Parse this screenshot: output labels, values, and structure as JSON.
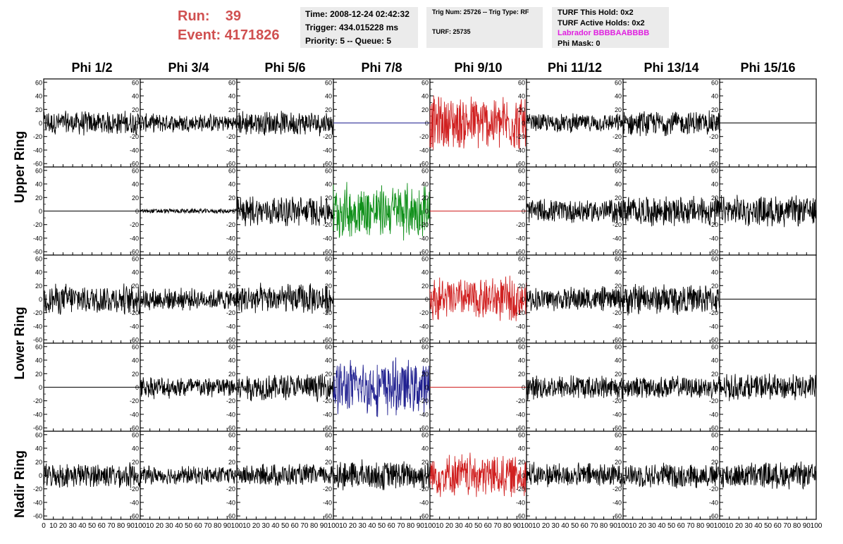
{
  "header": {
    "run_label": "Run:",
    "run_value": "39",
    "event_label": "Event:",
    "event_value": "4171826"
  },
  "info_panel_1": {
    "time": "Time: 2008-12-24 02:42:32",
    "trigger": "Trigger: 434.015228 ms",
    "priority": "Priority: 5 -- Queue: 5"
  },
  "info_panel_2": {
    "trig": "Trig Num: 25726 -- Trig Type: RF",
    "turf": "TURF: 25735"
  },
  "info_panel_3": {
    "this_hold": "TURF This Hold: 0x2",
    "active_holds": "TURF Active Holds: 0x2",
    "labrador": "Labrador BBBBAABBBB",
    "phi_mask": "Phi Mask: 0"
  },
  "columns": [
    "Phi 1/2",
    "Phi 3/4",
    "Phi 5/6",
    "Phi 7/8",
    "Phi 9/10",
    "Phi 11/12",
    "Phi 13/14",
    "Phi 15/16"
  ],
  "rows": [
    "Upper Ring",
    "Lower Ring",
    "Nadir Ring"
  ],
  "colors": {
    "black": "#000000",
    "red": "#d02020",
    "green": "#10901a",
    "blue": "#202090",
    "title_red": "#d05050",
    "magenta": "#e020e0"
  },
  "chart_data": {
    "type": "line",
    "x_range": [
      0,
      100
    ],
    "y_range": [
      -65,
      65
    ],
    "x_ticks": [
      0,
      10,
      20,
      30,
      40,
      50,
      60,
      70,
      80,
      90,
      100
    ],
    "y_ticks": [
      -60,
      -40,
      -20,
      0,
      20,
      40,
      60
    ],
    "y_tick_labels": [
      "-60",
      "-40",
      "-20",
      "0",
      "20",
      "40",
      "60"
    ],
    "x_tick_labels_first": [
      "0",
      "10",
      "20",
      "30",
      "40",
      "50",
      "60",
      "70",
      "80",
      "90",
      "100"
    ],
    "x_tick_labels_other": [
      "10",
      "20",
      "30",
      "40",
      "50",
      "60",
      "70",
      "80",
      "90",
      "100"
    ],
    "panel_rows": [
      {
        "channels": [
          {
            "color": "black",
            "amplitude": 20,
            "flat": false
          },
          {
            "color": "black",
            "amplitude": 15,
            "flat": false
          },
          {
            "color": "black",
            "amplitude": 20,
            "flat": false
          },
          {
            "color": "blue",
            "amplitude": 0,
            "flat": true
          },
          {
            "color": "red",
            "amplitude": 45,
            "flat": false
          },
          {
            "color": "black",
            "amplitude": 15,
            "flat": false
          },
          {
            "color": "black",
            "amplitude": 20,
            "flat": false
          },
          {
            "color": "black",
            "amplitude": 0,
            "flat": true
          }
        ]
      },
      {
        "channels": [
          {
            "color": "black",
            "amplitude": 0,
            "flat": true
          },
          {
            "color": "black",
            "amplitude": 4,
            "flat": false
          },
          {
            "color": "black",
            "amplitude": 25,
            "flat": false
          },
          {
            "color": "green",
            "amplitude": 45,
            "flat": false
          },
          {
            "color": "red",
            "amplitude": 0,
            "flat": true
          },
          {
            "color": "black",
            "amplitude": 20,
            "flat": false
          },
          {
            "color": "black",
            "amplitude": 25,
            "flat": false
          },
          {
            "color": "black",
            "amplitude": 25,
            "flat": false
          }
        ]
      },
      {
        "channels": [
          {
            "color": "black",
            "amplitude": 25,
            "flat": false
          },
          {
            "color": "black",
            "amplitude": 18,
            "flat": false
          },
          {
            "color": "black",
            "amplitude": 25,
            "flat": false
          },
          {
            "color": "black",
            "amplitude": 0,
            "flat": true
          },
          {
            "color": "red",
            "amplitude": 35,
            "flat": false
          },
          {
            "color": "black",
            "amplitude": 20,
            "flat": false
          },
          {
            "color": "black",
            "amplitude": 25,
            "flat": false
          },
          {
            "color": "black",
            "amplitude": 0,
            "flat": true
          }
        ]
      },
      {
        "channels": [
          {
            "color": "black",
            "amplitude": 0,
            "flat": true
          },
          {
            "color": "black",
            "amplitude": 18,
            "flat": false
          },
          {
            "color": "black",
            "amplitude": 22,
            "flat": false
          },
          {
            "color": "blue",
            "amplitude": 45,
            "flat": false
          },
          {
            "color": "red",
            "amplitude": 0,
            "flat": true
          },
          {
            "color": "black",
            "amplitude": 20,
            "flat": false
          },
          {
            "color": "black",
            "amplitude": 18,
            "flat": false
          },
          {
            "color": "black",
            "amplitude": 22,
            "flat": false
          }
        ]
      },
      {
        "channels": [
          {
            "color": "black",
            "amplitude": 20,
            "flat": false
          },
          {
            "color": "black",
            "amplitude": 15,
            "flat": false
          },
          {
            "color": "black",
            "amplitude": 18,
            "flat": false
          },
          {
            "color": "black",
            "amplitude": 25,
            "flat": false
          },
          {
            "color": "red",
            "amplitude": 35,
            "flat": false
          },
          {
            "color": "black",
            "amplitude": 20,
            "flat": false
          },
          {
            "color": "black",
            "amplitude": 20,
            "flat": false
          },
          {
            "color": "black",
            "amplitude": 22,
            "flat": false
          }
        ]
      }
    ]
  }
}
